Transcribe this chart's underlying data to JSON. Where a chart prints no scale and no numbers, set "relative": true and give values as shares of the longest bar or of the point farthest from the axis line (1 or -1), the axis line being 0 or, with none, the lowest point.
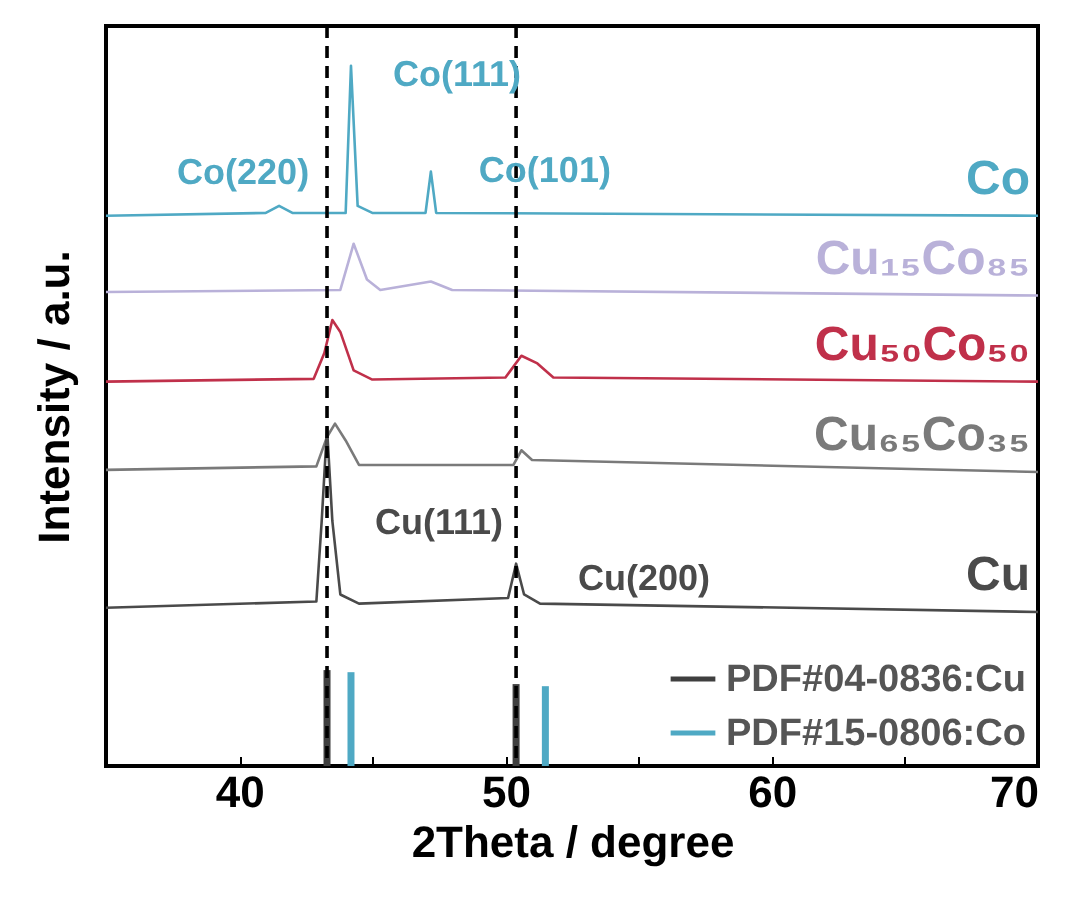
{
  "chart_data": {
    "type": "line",
    "relative": true,
    "xlabel": "2Theta / degree",
    "ylabel": "Intensity / a.u.",
    "xlim": [
      35,
      70
    ],
    "xticks": [
      40,
      {
        "value": 45,
        "label": null
      },
      50,
      {
        "value": 55,
        "label": null
      },
      60,
      {
        "value": 65,
        "label": null
      },
      70
    ],
    "legend": "bottom right",
    "marker": "none",
    "line_style": "solid",
    "grid": false,
    "series": [
      {
        "name": "Co",
        "color": "#4fa9c4",
        "x": [
          35,
          41,
          41.5,
          42,
          44.0,
          44.2,
          44.45,
          45,
          47.0,
          47.2,
          47.4,
          70
        ],
        "values": [
          0.786,
          0.79,
          0.8,
          0.79,
          0.79,
          1.0,
          0.8,
          0.79,
          0.79,
          0.849,
          0.79,
          0.786
        ]
      },
      {
        "name": "Cu₁₅Co₈₅",
        "color": "#b9b1d9",
        "x": [
          35,
          43.8,
          44.3,
          44.8,
          45.3,
          47.2,
          48,
          70
        ],
        "values": [
          0.677,
          0.68,
          0.746,
          0.695,
          0.68,
          0.692,
          0.68,
          0.672
        ]
      },
      {
        "name": "Cu₅₀Co₅₀",
        "color": "#c0304a",
        "x": [
          35,
          42.8,
          43.2,
          43.5,
          43.8,
          44.3,
          45,
          50.0,
          50.6,
          51.2,
          51.8,
          70
        ],
        "values": [
          0.549,
          0.553,
          0.59,
          0.637,
          0.62,
          0.565,
          0.552,
          0.555,
          0.586,
          0.575,
          0.555,
          0.549
        ]
      },
      {
        "name": "Cu₆₅Co₃₅",
        "color": "#7a7a7a",
        "x": [
          35,
          42.9,
          43.3,
          43.6,
          44,
          44.5,
          50.3,
          50.6,
          51,
          70
        ],
        "values": [
          0.423,
          0.428,
          0.47,
          0.489,
          0.465,
          0.43,
          0.43,
          0.451,
          0.437,
          0.42
        ]
      },
      {
        "name": "Cu",
        "color": "#4a4a4a",
        "x": [
          35,
          42.9,
          43.1,
          43.3,
          43.5,
          43.8,
          44.5,
          50.1,
          50.4,
          50.7,
          51.3,
          70
        ],
        "values": [
          0.226,
          0.235,
          0.35,
          0.483,
          0.35,
          0.245,
          0.232,
          0.24,
          0.289,
          0.245,
          0.232,
          0.22
        ]
      },
      {
        "name": "PDF#04-0836:Cu",
        "type": "bar",
        "color": "#3f3f3f",
        "x": [
          43.3,
          50.4
        ],
        "values": [
          0.137,
          0.117
        ]
      },
      {
        "name": "PDF#15-0806:Co",
        "type": "bar",
        "color": "#4fa9c4",
        "x": [
          44.2,
          51.5
        ],
        "values": [
          0.134,
          0.114
        ]
      }
    ],
    "ref_lines": [
      {
        "axis": "x",
        "value": 43.3,
        "line_style": "dashed"
      },
      {
        "axis": "x",
        "value": 50.4,
        "line_style": "dashed"
      }
    ],
    "annotations": [
      {
        "text": "Co(220)",
        "x": 41.5,
        "y": 0.8
      },
      {
        "text": "Co(111)",
        "x": 44.2,
        "y": 1.0
      },
      {
        "text": "Co(101)",
        "x": 47.2,
        "y": 0.849
      },
      {
        "text": "Cu(111)",
        "x": 43.3,
        "y": 0.483
      },
      {
        "text": "Cu(200)",
        "x": 50.4,
        "y": 0.289
      }
    ]
  }
}
